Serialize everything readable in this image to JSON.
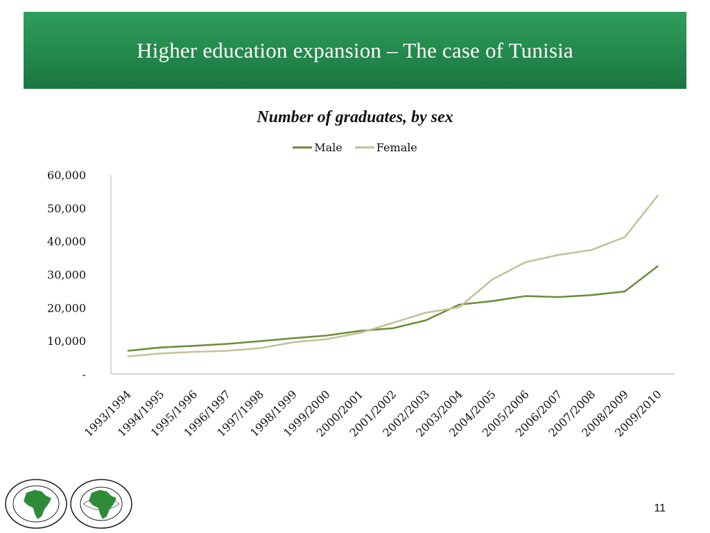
{
  "header": {
    "title": "Higher education expansion – The case of Tunisia"
  },
  "chart_data": {
    "type": "line",
    "title": "Number of graduates, by sex",
    "categories": [
      "1993/1994",
      "1994/1995",
      "1995/1996",
      "1996/1997",
      "1997/1998",
      "1998/1999",
      "1999/2000",
      "2000/2001",
      "2001/2002",
      "2002/2003",
      "2003/2004",
      "2004/2005",
      "2005/2006",
      "2006/2007",
      "2007/2008",
      "2008/2009",
      "2009/2010"
    ],
    "series": [
      {
        "name": "Male",
        "color": "#6b8e3a",
        "values": [
          7000,
          8000,
          8500,
          9100,
          9900,
          10800,
          11600,
          13000,
          13800,
          16200,
          20900,
          22000,
          23500,
          23200,
          23800,
          24900,
          32600
        ]
      },
      {
        "name": "Female",
        "color": "#c8c09a",
        "values": [
          5300,
          6200,
          6700,
          7000,
          7800,
          9600,
          10500,
          12400,
          15400,
          18500,
          20100,
          28500,
          33700,
          35900,
          37400,
          41300,
          53900
        ]
      }
    ],
    "y_ticks": [
      "-",
      "10,000",
      "20,000",
      "30,000",
      "40,000",
      "50,000",
      "60,000"
    ],
    "ylim": [
      0,
      60000
    ],
    "grid": false,
    "legend_position": "top"
  },
  "footer": {
    "page_number": "11"
  },
  "logos": [
    {
      "name": "afdb-bank-logo",
      "icon": "africa-map-icon",
      "ring_color": "#1a1a1a",
      "map_color": "#2e8b3a",
      "text": "BANQUE AFRICAINE DE DEVELOPPEMENT · AFRICAN DEVELOPMENT BANK"
    },
    {
      "name": "afdf-fund-logo",
      "icon": "africa-map-icon",
      "ring_color": "#1a1a1a",
      "map_color": "#2e8b3a",
      "text": "AFRICAN DEVELOPMENT FUND · FONDS AFRICAIN DE DEVELOPPEMENT"
    }
  ]
}
